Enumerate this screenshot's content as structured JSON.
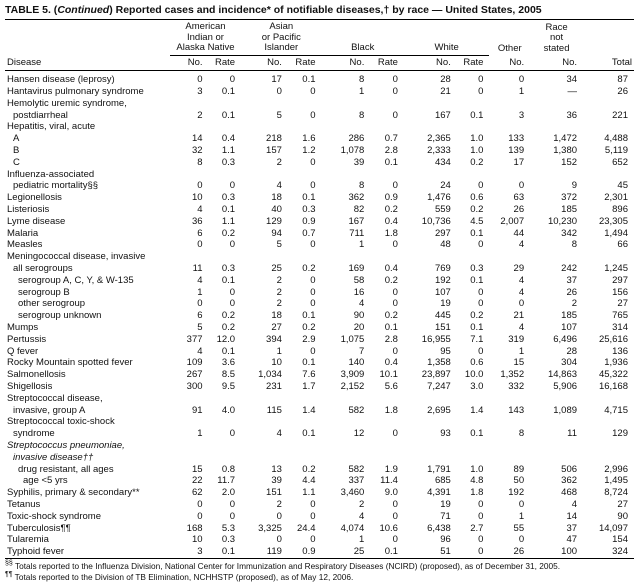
{
  "title": {
    "part1": "TABLE 5. (",
    "part2": "Continued",
    "part3": ") Reported cases and incidence* of notifiable diseases,† by race — United States, 2005"
  },
  "table": {
    "columns": {
      "disease": "Disease",
      "groups": [
        {
          "label": "American\nIndian or\nAlaska Native",
          "subs": [
            "No.",
            "Rate"
          ]
        },
        {
          "label": "Asian\nor Pacific\nIslander",
          "subs": [
            "No.",
            "Rate"
          ]
        },
        {
          "label": "Black",
          "subs": [
            "No.",
            "Rate"
          ]
        },
        {
          "label": "White",
          "subs": [
            "No.",
            "Rate"
          ]
        },
        {
          "label": "Other",
          "subs": [
            "No."
          ]
        },
        {
          "label": "Race\nnot\nstated",
          "subs": [
            "No."
          ]
        },
        {
          "label": "Total",
          "subs": []
        }
      ]
    },
    "rows": [
      {
        "label": "Hansen disease (leprosy)",
        "indent": 0,
        "values": [
          "0",
          "0",
          "17",
          "0.1",
          "8",
          "0",
          "28",
          "0",
          "0",
          "34",
          "87"
        ]
      },
      {
        "label": "Hantavirus pulmonary syndrome",
        "indent": 0,
        "values": [
          "3",
          "0.1",
          "0",
          "0",
          "1",
          "0",
          "21",
          "0",
          "1",
          "—",
          "26"
        ]
      },
      {
        "label": "Hemolytic uremic syndrome,",
        "indent": 0,
        "values": null
      },
      {
        "label": "postdiarrheal",
        "indent": 1,
        "values": [
          "2",
          "0.1",
          "5",
          "0",
          "8",
          "0",
          "167",
          "0.1",
          "3",
          "36",
          "221"
        ]
      },
      {
        "label": "Hepatitis, viral, acute",
        "indent": 0,
        "values": null
      },
      {
        "label": "A",
        "indent": 1,
        "values": [
          "14",
          "0.4",
          "218",
          "1.6",
          "286",
          "0.7",
          "2,365",
          "1.0",
          "133",
          "1,472",
          "4,488"
        ]
      },
      {
        "label": "B",
        "indent": 1,
        "values": [
          "32",
          "1.1",
          "157",
          "1.2",
          "1,078",
          "2.8",
          "2,333",
          "1.0",
          "139",
          "1,380",
          "5,119"
        ]
      },
      {
        "label": "C",
        "indent": 1,
        "values": [
          "8",
          "0.3",
          "2",
          "0",
          "39",
          "0.1",
          "434",
          "0.2",
          "17",
          "152",
          "652"
        ]
      },
      {
        "label": "Influenza-associated",
        "indent": 0,
        "values": null
      },
      {
        "label": "pediatric mortality§§",
        "indent": 1,
        "values": [
          "0",
          "0",
          "4",
          "0",
          "8",
          "0",
          "24",
          "0",
          "0",
          "9",
          "45"
        ]
      },
      {
        "label": "Legionellosis",
        "indent": 0,
        "values": [
          "10",
          "0.3",
          "18",
          "0.1",
          "362",
          "0.9",
          "1,476",
          "0.6",
          "63",
          "372",
          "2,301"
        ]
      },
      {
        "label": "Listeriosis",
        "indent": 0,
        "values": [
          "4",
          "0.1",
          "40",
          "0.3",
          "82",
          "0.2",
          "559",
          "0.2",
          "26",
          "185",
          "896"
        ]
      },
      {
        "label": "Lyme disease",
        "indent": 0,
        "values": [
          "36",
          "1.1",
          "129",
          "0.9",
          "167",
          "0.4",
          "10,736",
          "4.5",
          "2,007",
          "10,230",
          "23,305"
        ]
      },
      {
        "label": "Malaria",
        "indent": 0,
        "values": [
          "6",
          "0.2",
          "94",
          "0.7",
          "711",
          "1.8",
          "297",
          "0.1",
          "44",
          "342",
          "1,494"
        ]
      },
      {
        "label": "Measles",
        "indent": 0,
        "values": [
          "0",
          "0",
          "5",
          "0",
          "1",
          "0",
          "48",
          "0",
          "4",
          "8",
          "66"
        ]
      },
      {
        "label": "Meningococcal disease, invasive",
        "indent": 0,
        "values": null
      },
      {
        "label": "all serogroups",
        "indent": 1,
        "values": [
          "11",
          "0.3",
          "25",
          "0.2",
          "169",
          "0.4",
          "769",
          "0.3",
          "29",
          "242",
          "1,245"
        ]
      },
      {
        "label": "serogroup A, C, Y, & W-135",
        "indent": 2,
        "values": [
          "4",
          "0.1",
          "2",
          "0",
          "58",
          "0.2",
          "192",
          "0.1",
          "4",
          "37",
          "297"
        ]
      },
      {
        "label": "serogroup B",
        "indent": 2,
        "values": [
          "1",
          "0",
          "2",
          "0",
          "16",
          "0",
          "107",
          "0",
          "4",
          "26",
          "156"
        ]
      },
      {
        "label": "other serogroup",
        "indent": 2,
        "values": [
          "0",
          "0",
          "2",
          "0",
          "4",
          "0",
          "19",
          "0",
          "0",
          "2",
          "27"
        ]
      },
      {
        "label": "serogroup unknown",
        "indent": 2,
        "values": [
          "6",
          "0.2",
          "18",
          "0.1",
          "90",
          "0.2",
          "445",
          "0.2",
          "21",
          "185",
          "765"
        ]
      },
      {
        "label": "Mumps",
        "indent": 0,
        "values": [
          "5",
          "0.2",
          "27",
          "0.2",
          "20",
          "0.1",
          "151",
          "0.1",
          "4",
          "107",
          "314"
        ]
      },
      {
        "label": "Pertussis",
        "indent": 0,
        "values": [
          "377",
          "12.0",
          "394",
          "2.9",
          "1,075",
          "2.8",
          "16,955",
          "7.1",
          "319",
          "6,496",
          "25,616"
        ]
      },
      {
        "label": "Q fever",
        "indent": 0,
        "values": [
          "4",
          "0.1",
          "1",
          "0",
          "7",
          "0",
          "95",
          "0",
          "1",
          "28",
          "136"
        ]
      },
      {
        "label": "Rocky Mountain spotted fever",
        "indent": 0,
        "values": [
          "109",
          "3.6",
          "10",
          "0.1",
          "140",
          "0.4",
          "1,358",
          "0.6",
          "15",
          "304",
          "1,936"
        ]
      },
      {
        "label": "Salmonellosis",
        "indent": 0,
        "values": [
          "267",
          "8.5",
          "1,034",
          "7.6",
          "3,909",
          "10.1",
          "23,897",
          "10.0",
          "1,352",
          "14,863",
          "45,322"
        ]
      },
      {
        "label": "Shigellosis",
        "indent": 0,
        "values": [
          "300",
          "9.5",
          "231",
          "1.7",
          "2,152",
          "5.6",
          "7,247",
          "3.0",
          "332",
          "5,906",
          "16,168"
        ]
      },
      {
        "label": "Streptococcal disease,",
        "indent": 0,
        "values": null
      },
      {
        "label": "invasive, group A",
        "indent": 1,
        "values": [
          "91",
          "4.0",
          "115",
          "1.4",
          "582",
          "1.8",
          "2,695",
          "1.4",
          "143",
          "1,089",
          "4,715"
        ]
      },
      {
        "label": "Streptococcal toxic-shock",
        "indent": 0,
        "values": null
      },
      {
        "label": "syndrome",
        "indent": 1,
        "values": [
          "1",
          "0",
          "4",
          "0.1",
          "12",
          "0",
          "93",
          "0.1",
          "8",
          "11",
          "129"
        ]
      },
      {
        "label": "Streptococcus pneumoniae,",
        "indent": 0,
        "italic": true,
        "values": null
      },
      {
        "label": "invasive disease††",
        "indent": 1,
        "italic": true,
        "values": null
      },
      {
        "label": "drug resistant, all ages",
        "indent": 2,
        "values": [
          "15",
          "0.8",
          "13",
          "0.2",
          "582",
          "1.9",
          "1,791",
          "1.0",
          "89",
          "506",
          "2,996"
        ]
      },
      {
        "label": "age <5 yrs",
        "indent": 3,
        "values": [
          "22",
          "11.7",
          "39",
          "4.4",
          "337",
          "11.4",
          "685",
          "4.8",
          "50",
          "362",
          "1,495"
        ]
      },
      {
        "label": "Syphilis, primary & secondary**",
        "indent": 0,
        "values": [
          "62",
          "2.0",
          "151",
          "1.1",
          "3,460",
          "9.0",
          "4,391",
          "1.8",
          "192",
          "468",
          "8,724"
        ]
      },
      {
        "label": "Tetanus",
        "indent": 0,
        "values": [
          "0",
          "0",
          "2",
          "0",
          "2",
          "0",
          "19",
          "0",
          "0",
          "4",
          "27"
        ]
      },
      {
        "label": "Toxic-shock syndrome",
        "indent": 0,
        "values": [
          "0",
          "0",
          "0",
          "0",
          "4",
          "0",
          "71",
          "0",
          "1",
          "14",
          "90"
        ]
      },
      {
        "label": "Tuberculosis¶¶",
        "indent": 0,
        "values": [
          "168",
          "5.3",
          "3,325",
          "24.4",
          "4,074",
          "10.6",
          "6,438",
          "2.7",
          "55",
          "37",
          "14,097"
        ]
      },
      {
        "label": "Tularemia",
        "indent": 0,
        "values": [
          "10",
          "0.3",
          "0",
          "0",
          "1",
          "0",
          "96",
          "0",
          "0",
          "47",
          "154"
        ]
      },
      {
        "label": "Typhoid fever",
        "indent": 0,
        "values": [
          "3",
          "0.1",
          "119",
          "0.9",
          "25",
          "0.1",
          "51",
          "0",
          "26",
          "100",
          "324"
        ]
      }
    ]
  },
  "footnotes": [
    {
      "marker": "§§",
      "text": " Totals reported to the Influenza Division, National Center for Immunization and Respiratory Diseases (NCIRD) (proposed), as of December 31, 2005."
    },
    {
      "marker": "¶¶",
      "text": " Totals reported to the Division of TB Elimination, NCHHSTP (proposed), as of May 12, 2006."
    }
  ]
}
